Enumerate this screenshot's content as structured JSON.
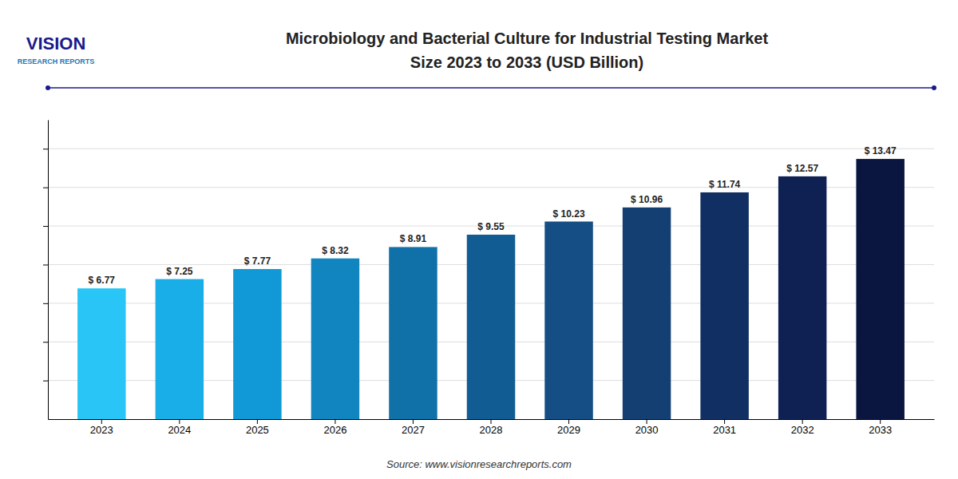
{
  "chart_data": {
    "type": "bar",
    "title": "Microbiology and Bacterial Culture for Industrial Testing Market",
    "subtitle": "Size 2023 to 2033 (USD Billion)",
    "categories": [
      "2023",
      "2024",
      "2025",
      "2026",
      "2027",
      "2028",
      "2029",
      "2030",
      "2031",
      "2032",
      "2033"
    ],
    "values": [
      6.77,
      7.25,
      7.77,
      8.32,
      8.91,
      9.55,
      10.23,
      10.96,
      11.74,
      12.57,
      13.47
    ],
    "value_labels": [
      "$ 6.77",
      "$ 7.25",
      "$ 7.77",
      "$ 8.32",
      "$ 8.91",
      "$ 9.55",
      "$ 10.23",
      "$ 10.96",
      "$ 11.74",
      "$ 12.57",
      "$ 13.47"
    ],
    "data_labels": true,
    "colors": [
      "#29C5F6",
      "#1AAEE8",
      "#1099D6",
      "#1185BF",
      "#1070A8",
      "#125C94",
      "#144E84",
      "#133F72",
      "#112F62",
      "#0E2152",
      "#0A1540"
    ],
    "ylim": [
      0,
      15.5
    ],
    "yticks": [
      2,
      4,
      6,
      8,
      10,
      12,
      14
    ],
    "grid": true,
    "tick_labels": "x",
    "annotations": [
      "VISION",
      "RESEARCH REPORTS",
      "Source: www.visionresearchreports.com"
    ]
  }
}
